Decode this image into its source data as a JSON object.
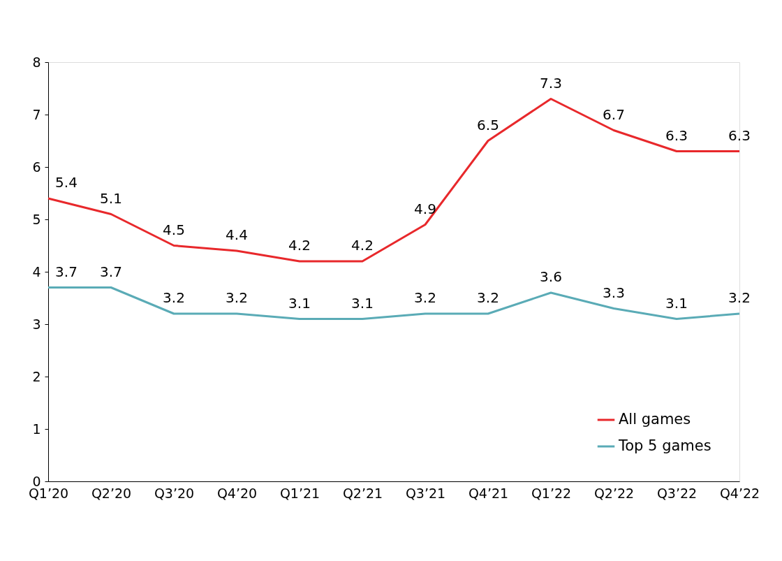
{
  "chart_data": {
    "type": "line",
    "categories": [
      "Q1’20",
      "Q2’20",
      "Q3’20",
      "Q4’20",
      "Q1’21",
      "Q2’21",
      "Q3’21",
      "Q4’21",
      "Q1’22",
      "Q2’22",
      "Q3’22",
      "Q4’22"
    ],
    "series": [
      {
        "name": "All games",
        "color": "#e8282b",
        "values": [
          5.4,
          5.1,
          4.5,
          4.4,
          4.2,
          4.2,
          4.9,
          6.5,
          7.3,
          6.7,
          6.3,
          6.3
        ]
      },
      {
        "name": "Top 5 games",
        "color": "#5aabb6",
        "values": [
          3.7,
          3.7,
          3.2,
          3.2,
          3.1,
          3.1,
          3.2,
          3.2,
          3.6,
          3.3,
          3.1,
          3.2
        ]
      }
    ],
    "ylim": [
      0,
      8
    ],
    "yticks": [
      0,
      1,
      2,
      3,
      4,
      5,
      6,
      7,
      8
    ],
    "grid": false,
    "legend": "bottom right",
    "data_labels": true,
    "marker": "none",
    "line_style": "solid"
  }
}
